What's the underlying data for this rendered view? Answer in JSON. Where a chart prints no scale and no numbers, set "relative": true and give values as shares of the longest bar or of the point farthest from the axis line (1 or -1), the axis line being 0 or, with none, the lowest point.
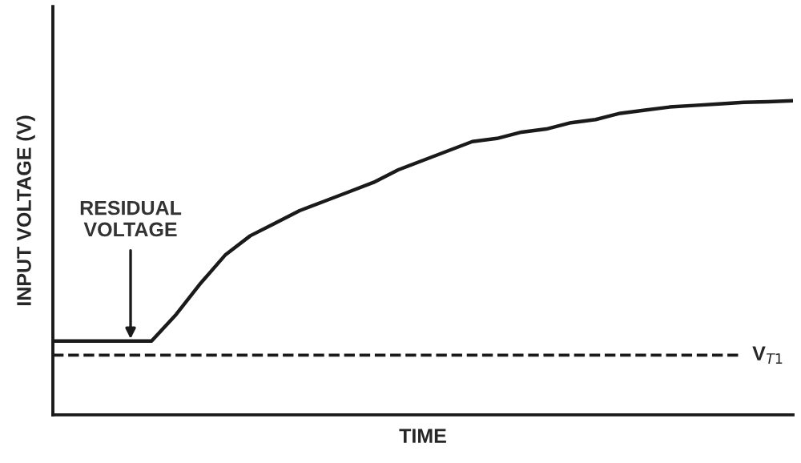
{
  "chart_data": {
    "type": "line",
    "relative": true,
    "xlabel": "TIME",
    "ylabel": "INPUT VOLTAGE (V)",
    "categories": [
      null,
      null,
      null,
      null,
      null,
      null,
      null,
      null,
      null,
      null,
      null,
      null,
      null,
      null,
      null,
      null,
      null,
      null,
      null,
      null,
      null,
      null,
      null,
      null,
      null,
      null,
      null,
      null,
      null,
      null,
      null
    ],
    "series": [
      {
        "color": "#1a1a1a",
        "values": [
          0.235,
          0.235,
          0.235,
          0.235,
          0.235,
          0.32,
          0.42,
          0.51,
          0.57,
          0.61,
          0.65,
          0.68,
          0.71,
          0.74,
          0.78,
          0.81,
          0.84,
          0.87,
          0.88,
          0.9,
          0.91,
          0.93,
          0.94,
          0.96,
          0.97,
          0.98,
          0.985,
          0.99,
          0.995,
          0.997,
          1.0
        ]
      }
    ],
    "ref_lines": [
      {
        "axis": "y",
        "value": 0.19,
        "label": "V$_{T1}$",
        "line_style": "dashed",
        "color": "#1a1a1a"
      }
    ],
    "annotations": [
      {
        "text": "RESIDUAL\nVOLTAGE",
        "y": 0.235
      }
    ],
    "marker": "none",
    "line_style": "solid",
    "grid": false,
    "legend": false
  }
}
